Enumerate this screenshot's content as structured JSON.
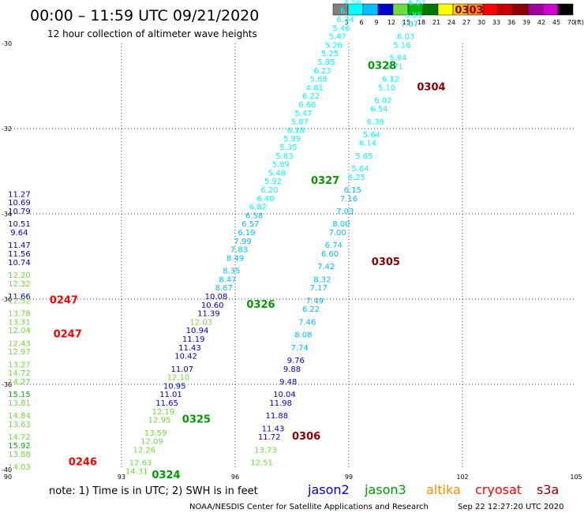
{
  "header": {
    "title": "00:00 – 11:59 UTC 09/21/2020",
    "subtitle": "12 hour collection of altimeter wave heights"
  },
  "color_scale": {
    "labels": [
      "3",
      "6",
      "9",
      "12",
      "15",
      "18",
      "21",
      "24",
      "27",
      "30",
      "33",
      "36",
      "39",
      "42",
      "45",
      "70"
    ],
    "unit": "(ft)",
    "colors": [
      "#808080",
      "#00ffff",
      "#00bfff",
      "#0000cd",
      "#6fdc3e",
      "#00b400",
      "#007800",
      "#ffff00",
      "#ffcc00",
      "#ff8c00",
      "#ff0000",
      "#c80000",
      "#8b0000",
      "#a000a0",
      "#d000d0",
      "#000000"
    ]
  },
  "footer": {
    "note": "note: 1) Time is in UTC; 2) SWH is in feet",
    "satellites": [
      {
        "name": "jason2",
        "color": "#0000cc"
      },
      {
        "name": "jason3",
        "color": "#009900"
      },
      {
        "name": "altika",
        "color": "#ff8c00"
      },
      {
        "name": "cryosat",
        "color": "#ff0000"
      },
      {
        "name": "s3a",
        "color": "#880000"
      }
    ],
    "credit": "NOAA/NESDIS Center for Satellite Applications and Research",
    "timestamp": "Sep 22 12:27:20 UTC 2020"
  },
  "chart_data": {
    "type": "scatter",
    "title": "00:00 – 11:59 UTC 09/21/2020",
    "subtitle": "12 hour collection of altimeter wave heights",
    "xlabel": "",
    "ylabel": "",
    "xlim": [
      90,
      105
    ],
    "ylim": [
      -40,
      -30
    ],
    "x_ticks": [
      90,
      93,
      96,
      99,
      102,
      105
    ],
    "y_ticks": [
      -30,
      -32,
      -34,
      -36,
      -38,
      -40
    ],
    "grid": true,
    "value_unit": "ft",
    "tracks": [
      {
        "label": "0247",
        "satellite": "cryosat",
        "label_pos": [
          91.1,
          -36.1
        ],
        "points": [
          [
            90.3,
            -33.6,
            11.27,
            "#0000cd"
          ],
          [
            90.3,
            -33.8,
            10.69,
            "#0000cd"
          ],
          [
            90.3,
            -34.0,
            10.79,
            "#0000cd"
          ],
          [
            90.3,
            -34.3,
            10.51,
            "#0000cd"
          ],
          [
            90.3,
            -34.5,
            9.64,
            "#0000cd"
          ],
          [
            90.3,
            -34.8,
            11.47,
            "#0000cd"
          ],
          [
            90.3,
            -35.0,
            11.56,
            "#0000cd"
          ],
          [
            90.3,
            -35.2,
            10.74,
            "#0000cd"
          ],
          [
            90.3,
            -35.5,
            12.2,
            "#6fdc3e"
          ],
          [
            90.3,
            -35.7,
            12.32,
            "#6fdc3e"
          ],
          [
            90.3,
            -36.0,
            11.66,
            "#0000cd"
          ],
          [
            90.3,
            -36.1,
            12.52,
            "#6fdc3e"
          ],
          [
            90.3,
            -36.4,
            13.78,
            "#6fdc3e"
          ],
          [
            90.3,
            -36.6,
            13.31,
            "#6fdc3e"
          ],
          [
            90.3,
            -36.8,
            12.04,
            "#6fdc3e"
          ],
          [
            90.3,
            -37.1,
            12.43,
            "#6fdc3e"
          ],
          [
            90.3,
            -37.3,
            12.97,
            "#6fdc3e"
          ],
          [
            90.3,
            -37.6,
            13.27,
            "#6fdc3e"
          ],
          [
            90.3,
            -37.8,
            14.72,
            "#6fdc3e"
          ],
          [
            90.3,
            -38.0,
            14.27,
            "#6fdc3e"
          ],
          [
            90.3,
            -38.3,
            15.15,
            "#00b400"
          ],
          [
            90.3,
            -38.5,
            13.81,
            "#6fdc3e"
          ],
          [
            90.3,
            -38.8,
            14.84,
            "#6fdc3e"
          ],
          [
            90.3,
            -39.0,
            13.63,
            "#6fdc3e"
          ],
          [
            90.3,
            -39.3,
            14.72,
            "#6fdc3e"
          ],
          [
            90.3,
            -39.5,
            15.92,
            "#00b400"
          ],
          [
            90.3,
            -39.7,
            13.88,
            "#6fdc3e"
          ],
          [
            90.3,
            -40.0,
            14.03,
            "#6fdc3e"
          ]
        ]
      },
      {
        "label": "0247",
        "satellite": "cryosat",
        "label_pos": [
          91.2,
          -36.9
        ],
        "points": []
      },
      {
        "label": "0246",
        "satellite": "cryosat",
        "label_pos": [
          91.6,
          -39.9
        ],
        "points": []
      },
      {
        "label": "0324",
        "satellite": "jason3",
        "label_pos": [
          93.8,
          -40.2
        ],
        "points": [
          [
            93.4,
            -40.1,
            14.31,
            "#6fdc3e"
          ],
          [
            93.5,
            -39.9,
            12.63,
            "#6fdc3e"
          ],
          [
            93.6,
            -39.6,
            12.26,
            "#6fdc3e"
          ],
          [
            93.8,
            -39.4,
            12.09,
            "#6fdc3e"
          ],
          [
            93.9,
            -39.2,
            13.59,
            "#6fdc3e"
          ],
          [
            94.0,
            -38.9,
            12.95,
            "#6fdc3e"
          ],
          [
            94.1,
            -38.7,
            12.19,
            "#6fdc3e"
          ],
          [
            94.2,
            -38.5,
            11.65,
            "#0000cd"
          ],
          [
            94.3,
            -38.3,
            11.01,
            "#0000cd"
          ],
          [
            94.4,
            -38.1,
            10.95,
            "#0000cd"
          ],
          [
            94.5,
            -37.9,
            12.1,
            "#6fdc3e"
          ],
          [
            94.6,
            -37.7,
            11.07,
            "#0000cd"
          ],
          [
            94.7,
            -37.4,
            10.42,
            "#0000cd"
          ],
          [
            94.8,
            -37.2,
            11.43,
            "#0000cd"
          ],
          [
            94.9,
            -37.0,
            11.19,
            "#0000cd"
          ],
          [
            95.0,
            -36.8,
            10.94,
            "#0000cd"
          ],
          [
            95.1,
            -36.6,
            12.03,
            "#6fdc3e"
          ],
          [
            95.3,
            -36.4,
            11.39,
            "#0000cd"
          ],
          [
            95.4,
            -36.2,
            10.6,
            "#0000cd"
          ],
          [
            95.5,
            -36.0,
            10.08,
            "#0000cd"
          ]
        ]
      },
      {
        "label": "0325",
        "satellite": "jason3",
        "label_pos": [
          94.6,
          -38.9
        ],
        "points": []
      },
      {
        "label": "0326",
        "satellite": "jason3",
        "label_pos": [
          96.3,
          -36.2
        ],
        "points": [
          [
            95.7,
            -35.8,
            8.67,
            "#00bfff"
          ],
          [
            95.8,
            -35.6,
            8.47,
            "#00bfff"
          ],
          [
            95.9,
            -35.4,
            8.35,
            "#00bfff"
          ],
          [
            96.0,
            -35.1,
            8.49,
            "#00bfff"
          ],
          [
            96.1,
            -34.9,
            7.83,
            "#00bfff"
          ],
          [
            96.2,
            -34.7,
            7.99,
            "#00bfff"
          ],
          [
            96.3,
            -34.5,
            6.19,
            "#00bfff"
          ],
          [
            96.4,
            -34.3,
            6.57,
            "#00bfff"
          ],
          [
            96.5,
            -34.1,
            6.58,
            "#00bfff"
          ],
          [
            96.6,
            -33.9,
            6.82,
            "#00ffff"
          ],
          [
            96.8,
            -33.7,
            6.4,
            "#00ffff"
          ],
          [
            96.9,
            -33.5,
            6.2,
            "#00ffff"
          ],
          [
            97.0,
            -33.3,
            5.92,
            "#00ffff"
          ],
          [
            97.1,
            -33.1,
            5.48,
            "#00ffff"
          ],
          [
            97.2,
            -32.9,
            5.89,
            "#00ffff"
          ],
          [
            97.3,
            -32.7,
            5.83,
            "#00ffff"
          ],
          [
            97.4,
            -32.5,
            5.35,
            "#00ffff"
          ],
          [
            97.5,
            -32.3,
            5.99,
            "#00ffff"
          ],
          [
            97.6,
            -32.1,
            6.18,
            "#00ffff"
          ],
          [
            97.7,
            -31.9,
            5.87,
            "#00ffff"
          ],
          [
            97.8,
            -31.7,
            5.47,
            "#00ffff"
          ],
          [
            97.9,
            -31.5,
            6.66,
            "#00ffff"
          ],
          [
            98.0,
            -31.3,
            6.22,
            "#00ffff"
          ],
          [
            98.1,
            -31.1,
            4.81,
            "#00ffff"
          ],
          [
            98.2,
            -30.9,
            5.68,
            "#00ffff"
          ],
          [
            98.3,
            -30.7,
            6.23,
            "#00ffff"
          ],
          [
            98.4,
            -30.5,
            5.85,
            "#00ffff"
          ],
          [
            98.5,
            -30.3,
            5.25,
            "#00ffff"
          ],
          [
            98.6,
            -30.1,
            5.26,
            "#00ffff"
          ],
          [
            98.7,
            -29.9,
            5.47,
            "#00ffff"
          ],
          [
            98.8,
            -29.7,
            5.46,
            "#00ffff"
          ],
          [
            98.9,
            -29.5,
            6.34,
            "#00ffff"
          ],
          [
            99.0,
            -29.3,
            6.37,
            "#00ffff"
          ],
          [
            99.1,
            -29.1,
            4.56,
            "#00ffff"
          ]
        ]
      },
      {
        "label": "0327",
        "satellite": "jason3",
        "label_pos": [
          98.0,
          -33.3
        ],
        "points": []
      },
      {
        "label": "0328",
        "satellite": "jason3",
        "label_pos": [
          99.5,
          -30.6
        ],
        "points": []
      },
      {
        "label": "0306",
        "satellite": "s3a",
        "label_pos": [
          97.5,
          -39.3
        ],
        "points": [
          [
            96.7,
            -39.9,
            12.51,
            "#6fdc3e"
          ],
          [
            96.8,
            -39.6,
            13.73,
            "#6fdc3e"
          ],
          [
            96.9,
            -39.3,
            11.72,
            "#0000cd"
          ],
          [
            97.0,
            -39.1,
            11.43,
            "#0000cd"
          ],
          [
            97.1,
            -38.8,
            11.88,
            "#0000cd"
          ],
          [
            97.2,
            -38.5,
            11.98,
            "#0000cd"
          ],
          [
            97.3,
            -38.3,
            10.04,
            "#0000cd"
          ],
          [
            97.4,
            -38.0,
            9.48,
            "#0000cd"
          ],
          [
            97.5,
            -37.7,
            9.88,
            "#0000cd"
          ],
          [
            97.6,
            -37.5,
            9.76,
            "#0000cd"
          ],
          [
            97.7,
            -37.2,
            7.74,
            "#00bfff"
          ],
          [
            97.8,
            -36.9,
            8.08,
            "#00bfff"
          ],
          [
            97.9,
            -36.6,
            7.46,
            "#00bfff"
          ],
          [
            98.0,
            -36.3,
            6.22,
            "#00bfff"
          ],
          [
            98.1,
            -36.1,
            7.49,
            "#00bfff"
          ],
          [
            98.2,
            -35.8,
            7.17,
            "#00bfff"
          ],
          [
            98.3,
            -35.6,
            8.32,
            "#00bfff"
          ],
          [
            98.4,
            -35.3,
            7.42,
            "#00bfff"
          ],
          [
            98.5,
            -35.0,
            6.6,
            "#00bfff"
          ],
          [
            98.6,
            -34.8,
            6.74,
            "#00bfff"
          ],
          [
            98.7,
            -34.5,
            7.0,
            "#00bfff"
          ],
          [
            98.8,
            -34.3,
            8.0,
            "#00bfff"
          ],
          [
            98.9,
            -34.0,
            7.03,
            "#00bfff"
          ],
          [
            99.0,
            -33.7,
            7.16,
            "#00bfff"
          ],
          [
            99.1,
            -33.5,
            6.15,
            "#00bfff"
          ],
          [
            99.2,
            -33.2,
            6.25,
            "#00ffff"
          ],
          [
            99.3,
            -33.0,
            5.64,
            "#00ffff"
          ],
          [
            99.4,
            -32.7,
            5.65,
            "#00ffff"
          ],
          [
            99.5,
            -32.4,
            6.14,
            "#00ffff"
          ],
          [
            99.6,
            -32.2,
            5.64,
            "#00ffff"
          ],
          [
            99.7,
            -31.9,
            6.38,
            "#00ffff"
          ],
          [
            99.8,
            -31.6,
            6.54,
            "#00ffff"
          ],
          [
            99.9,
            -31.4,
            6.02,
            "#00ffff"
          ],
          [
            100.0,
            -31.1,
            5.1,
            "#00ffff"
          ],
          [
            100.1,
            -30.9,
            6.12,
            "#00ffff"
          ],
          [
            100.2,
            -30.6,
            5.71,
            "#00ffff"
          ],
          [
            100.3,
            -30.4,
            5.84,
            "#00ffff"
          ],
          [
            100.4,
            -30.1,
            5.16,
            "#00ffff"
          ],
          [
            100.5,
            -29.9,
            6.03,
            "#00ffff"
          ],
          [
            100.6,
            -29.6,
            7.07,
            "#00bfff"
          ],
          [
            100.7,
            -29.4,
            5.85,
            "#00ffff"
          ],
          [
            100.8,
            -29.1,
            6.07,
            "#00ffff"
          ],
          [
            100.9,
            -28.9,
            6.27,
            "#00ffff"
          ]
        ]
      },
      {
        "label": "0305",
        "satellite": "s3a",
        "label_pos": [
          99.6,
          -35.2
        ],
        "points": []
      },
      {
        "label": "0304",
        "satellite": "s3a",
        "label_pos": [
          100.8,
          -31.1
        ],
        "points": []
      },
      {
        "label": "0303",
        "satellite": "s3a",
        "label_pos": [
          101.8,
          -29.3
        ],
        "points": []
      }
    ]
  }
}
